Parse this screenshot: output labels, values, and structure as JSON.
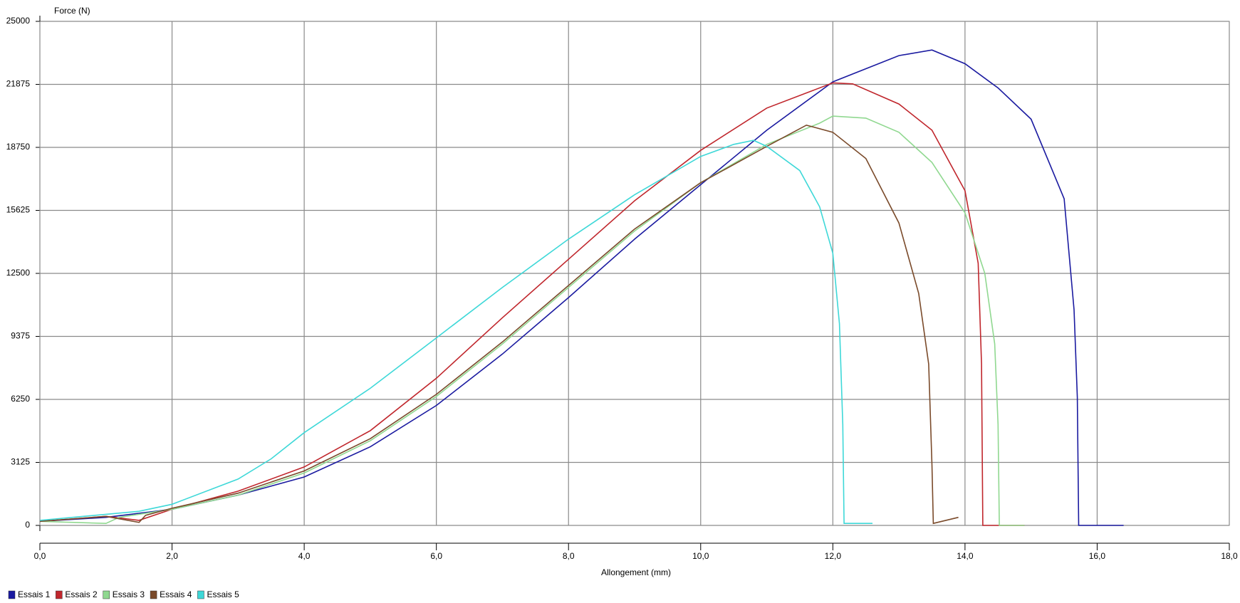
{
  "chart_data": {
    "type": "line",
    "y_label": "Force (N)",
    "x_label": "Allongement (mm)",
    "xlim": [
      0,
      18
    ],
    "ylim": [
      0,
      25000
    ],
    "xticks": [
      {
        "value": 0,
        "label": "0,0"
      },
      {
        "value": 2,
        "label": "2,0"
      },
      {
        "value": 4,
        "label": "4,0"
      },
      {
        "value": 6,
        "label": "6,0"
      },
      {
        "value": 8,
        "label": "8,0"
      },
      {
        "value": 10,
        "label": "10,0"
      },
      {
        "value": 12,
        "label": "12,0"
      },
      {
        "value": 14,
        "label": "14,0"
      },
      {
        "value": 16,
        "label": "16,0"
      },
      {
        "value": 18,
        "label": "18,0"
      }
    ],
    "yticks": [
      0,
      3125,
      6250,
      9375,
      12500,
      15625,
      18750,
      21875,
      25000
    ],
    "grid": true,
    "legend": "bottom-left",
    "series": [
      {
        "name": "Essais 1",
        "color": "#1a1aa0",
        "x": [
          0,
          1,
          2,
          3,
          4,
          5,
          6,
          7,
          8,
          9,
          10,
          11,
          12,
          13,
          13.5,
          14,
          14.5,
          15,
          15.5,
          15.65,
          15.7,
          15.72,
          16.4
        ],
        "values": [
          200,
          400,
          800,
          1500,
          2400,
          3900,
          5950,
          8500,
          11300,
          14200,
          16900,
          19600,
          22000,
          23300,
          23580,
          22900,
          21700,
          20150,
          16200,
          10700,
          6350,
          0,
          0
        ]
      },
      {
        "name": "Essais 2",
        "color": "#c0262c",
        "x": [
          0,
          1,
          1.5,
          2,
          3,
          4,
          5,
          6,
          7,
          8,
          9,
          10,
          11,
          12,
          12.3,
          13,
          13.5,
          14,
          14.2,
          14.25,
          14.27,
          14.9
        ],
        "values": [
          200,
          450,
          250,
          800,
          1700,
          2900,
          4700,
          7300,
          10300,
          13200,
          16100,
          18600,
          20700,
          21950,
          21900,
          20900,
          19600,
          16600,
          13000,
          8000,
          0,
          0
        ]
      },
      {
        "name": "Essais 3",
        "color": "#90d890",
        "x": [
          0,
          1,
          1.2,
          2,
          3,
          4,
          5,
          6,
          7,
          8,
          9,
          10,
          11,
          11.8,
          12,
          12.5,
          13,
          13.5,
          14,
          14.3,
          14.45,
          14.5,
          14.52,
          14.9
        ],
        "values": [
          200,
          100,
          400,
          800,
          1500,
          2600,
          4200,
          6400,
          9000,
          11800,
          14600,
          17000,
          18900,
          19950,
          20300,
          20200,
          19500,
          18000,
          15500,
          12500,
          9000,
          5000,
          0,
          0
        ]
      },
      {
        "name": "Essais 4",
        "color": "#7a4a2a",
        "x": [
          0,
          1,
          1.5,
          1.6,
          2,
          3,
          4,
          5,
          6,
          7,
          8,
          9,
          10,
          11,
          11.6,
          12,
          12.5,
          13,
          13.3,
          13.45,
          13.5,
          13.52,
          13.9
        ],
        "values": [
          200,
          450,
          150,
          500,
          850,
          1600,
          2700,
          4300,
          6500,
          9100,
          11900,
          14700,
          17000,
          18800,
          19850,
          19500,
          18200,
          15000,
          11500,
          8000,
          3000,
          100,
          400
        ]
      },
      {
        "name": "Essais 5",
        "color": "#3ed8d8",
        "x": [
          0,
          1,
          1.5,
          2,
          3,
          3.5,
          4,
          5,
          6,
          7,
          8,
          9,
          10,
          10.5,
          10.8,
          11,
          11.5,
          11.8,
          12,
          12.1,
          12.15,
          12.17,
          12.6
        ],
        "values": [
          250,
          550,
          700,
          1050,
          2300,
          3300,
          4600,
          6800,
          9300,
          11800,
          14200,
          16400,
          18300,
          18900,
          19100,
          18800,
          17600,
          15800,
          13500,
          10000,
          5000,
          100,
          100
        ]
      }
    ]
  }
}
